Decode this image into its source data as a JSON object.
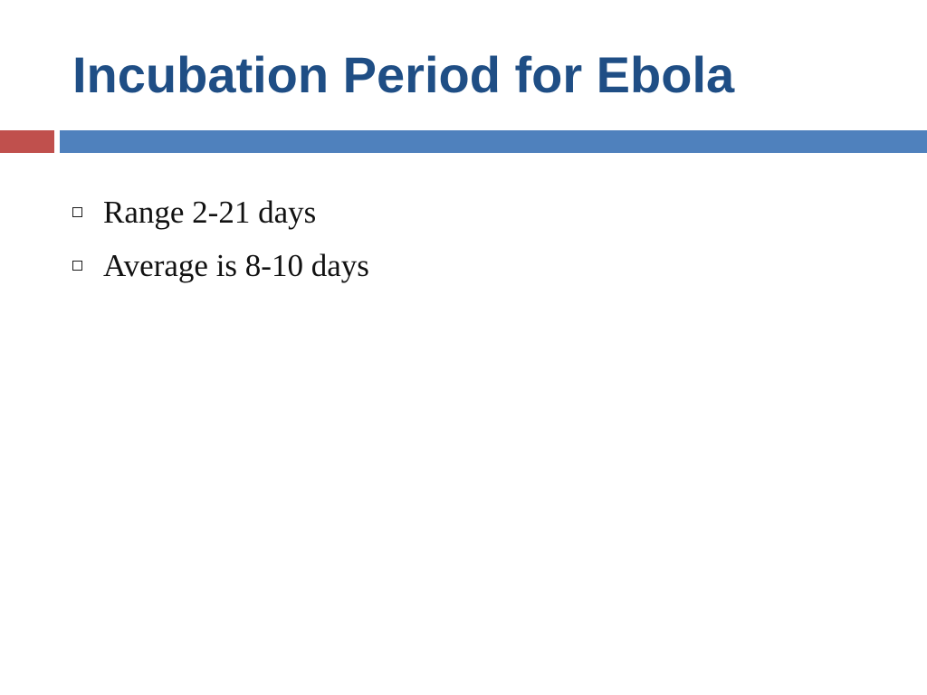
{
  "slide": {
    "title": "Incubation Period for Ebola",
    "bullets": [
      {
        "text": "Range 2-21 days"
      },
      {
        "text": "Average is 8-10 days"
      }
    ]
  },
  "colors": {
    "title": "#1f4e85",
    "accent_red": "#c0504d",
    "accent_blue": "#4f81bd"
  },
  "icons": {
    "bullet": "hollow-square-bullet-icon"
  }
}
